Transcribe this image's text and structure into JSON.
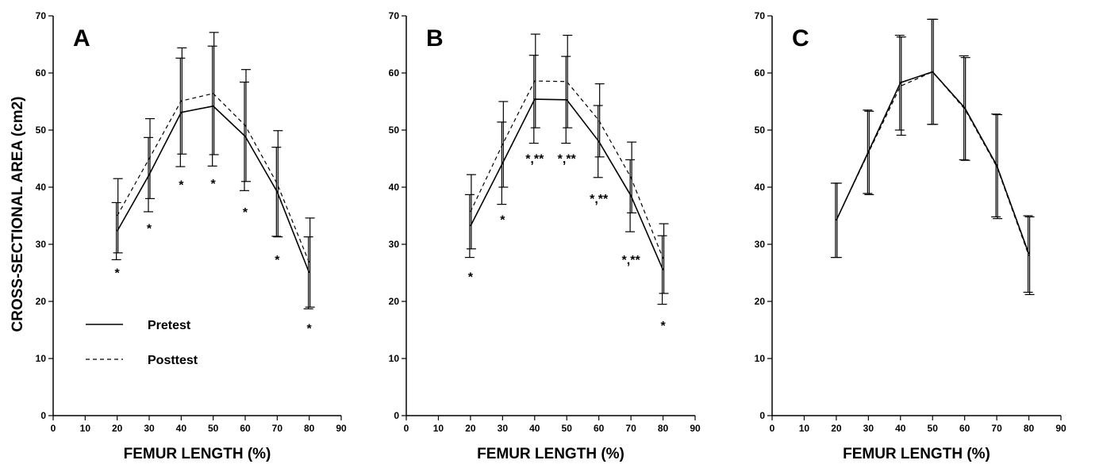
{
  "figure": {
    "ylabel": "CROSS-SECTIONAL AREA (cm2)",
    "legend": {
      "pretest": "Pretest",
      "posttest": "Posttest"
    }
  },
  "chart_data": [
    {
      "type": "line",
      "panel": "A",
      "xlabel": "FEMUR LENGTH (%)",
      "ylabel": "CROSS-SECTIONAL AREA (cm2)",
      "xlim": [
        0,
        90
      ],
      "ylim": [
        0,
        70
      ],
      "xticks": [
        0,
        10,
        20,
        30,
        40,
        50,
        60,
        70,
        80,
        90
      ],
      "yticks": [
        0,
        10,
        20,
        30,
        40,
        50,
        60,
        70
      ],
      "grid": false,
      "legend_position": "bottom-left",
      "x": [
        20,
        30,
        40,
        50,
        60,
        70,
        80
      ],
      "series": [
        {
          "name": "Pretest",
          "line": "solid",
          "values": [
            32.3,
            42.2,
            53.1,
            54.2,
            48.9,
            39.2,
            25.0
          ],
          "sd": [
            5.0,
            6.5,
            9.5,
            10.5,
            9.5,
            7.8,
            6.3
          ]
        },
        {
          "name": "Posttest",
          "line": "dashed",
          "values": [
            35.0,
            45.0,
            55.1,
            56.4,
            50.8,
            40.6,
            26.8
          ],
          "sd": [
            6.5,
            7.0,
            9.3,
            10.7,
            9.8,
            9.3,
            7.8
          ]
        }
      ],
      "significance": [
        {
          "x": 20,
          "y": 25.2,
          "text": "*"
        },
        {
          "x": 30,
          "y": 33.0,
          "text": "*"
        },
        {
          "x": 40,
          "y": 40.6,
          "text": "*"
        },
        {
          "x": 50,
          "y": 40.8,
          "text": "*"
        },
        {
          "x": 60,
          "y": 35.8,
          "text": "*"
        },
        {
          "x": 70,
          "y": 27.5,
          "text": "*"
        },
        {
          "x": 80,
          "y": 15.5,
          "text": "*"
        }
      ]
    },
    {
      "type": "line",
      "panel": "B",
      "xlabel": "FEMUR LENGTH (%)",
      "xlim": [
        0,
        90
      ],
      "ylim": [
        0,
        70
      ],
      "xticks": [
        0,
        10,
        20,
        30,
        40,
        50,
        60,
        70,
        80,
        90
      ],
      "yticks": [
        0,
        10,
        20,
        30,
        40,
        50,
        60,
        70
      ],
      "grid": false,
      "x": [
        20,
        30,
        40,
        50,
        60,
        70,
        80
      ],
      "series": [
        {
          "name": "Pretest",
          "line": "solid",
          "values": [
            33.2,
            44.2,
            55.4,
            55.3,
            48.0,
            38.5,
            25.5
          ],
          "sd": [
            5.5,
            7.2,
            7.7,
            7.6,
            6.3,
            6.3,
            6.0
          ]
        },
        {
          "name": "Posttest",
          "line": "dashed",
          "values": [
            35.7,
            47.5,
            58.6,
            58.5,
            51.7,
            41.7,
            27.5
          ],
          "sd": [
            6.5,
            7.5,
            8.2,
            8.1,
            6.4,
            6.2,
            6.1
          ]
        }
      ],
      "significance": [
        {
          "x": 20,
          "y": 24.5,
          "text": "*"
        },
        {
          "x": 30,
          "y": 34.5,
          "text": "*"
        },
        {
          "x": 40,
          "y": 45.2,
          "text": "*,**"
        },
        {
          "x": 50,
          "y": 45.2,
          "text": "*,**"
        },
        {
          "x": 60,
          "y": 38.2,
          "text": "*,**"
        },
        {
          "x": 70,
          "y": 27.5,
          "text": "*,**"
        },
        {
          "x": 80,
          "y": 16.0,
          "text": "*"
        }
      ]
    },
    {
      "type": "line",
      "panel": "C",
      "xlabel": "FEMUR LENGTH (%)",
      "xlim": [
        0,
        90
      ],
      "ylim": [
        0,
        70
      ],
      "xticks": [
        0,
        10,
        20,
        30,
        40,
        50,
        60,
        70,
        80,
        90
      ],
      "yticks": [
        0,
        10,
        20,
        30,
        40,
        50,
        60,
        70
      ],
      "grid": false,
      "x": [
        20,
        30,
        40,
        50,
        60,
        70,
        80
      ],
      "series": [
        {
          "name": "Pretest",
          "line": "solid",
          "values": [
            34.2,
            46.2,
            58.3,
            60.2,
            53.9,
            43.8,
            28.3
          ],
          "sd": [
            6.5,
            7.3,
            8.3,
            9.2,
            9.1,
            9.0,
            6.7
          ]
        },
        {
          "name": "Posttest",
          "line": "dashed",
          "values": [
            34.2,
            46.0,
            57.7,
            60.2,
            53.7,
            43.6,
            28.0
          ],
          "sd": [
            6.5,
            7.3,
            8.6,
            9.2,
            9.0,
            9.1,
            6.8
          ]
        }
      ],
      "significance": []
    }
  ]
}
